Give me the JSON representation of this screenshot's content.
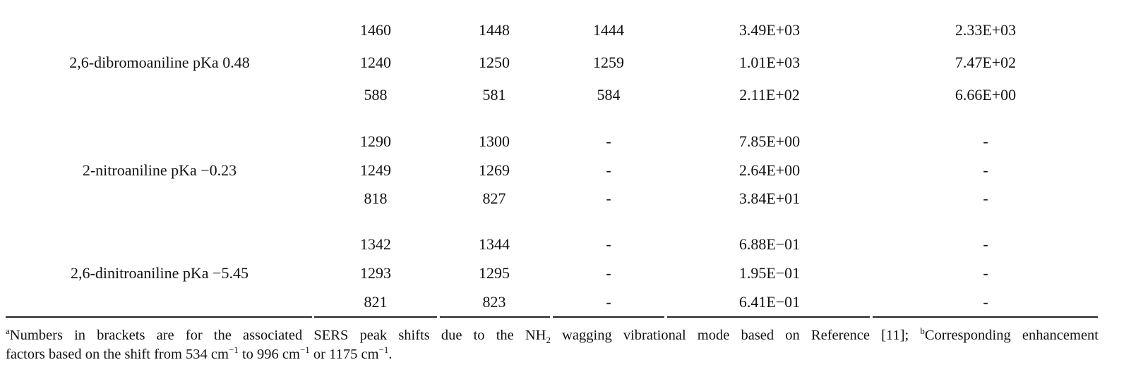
{
  "table": {
    "groups": [
      {
        "label": "2,6-dibromoaniline pKa 0.48",
        "rows": [
          [
            "1460",
            "1448",
            "1444",
            "3.49E+03",
            "2.33E+03"
          ],
          [
            "1240",
            "1250",
            "1259",
            "1.01E+03",
            "7.47E+02"
          ],
          [
            "588",
            "581",
            "584",
            "2.11E+02",
            "6.66E+00"
          ]
        ]
      },
      {
        "label": "2-nitroaniline pKa −0.23",
        "rows": [
          [
            "1290",
            "1300",
            "-",
            "7.85E+00",
            "-"
          ],
          [
            "1249",
            "1269",
            "-",
            "2.64E+00",
            "-"
          ],
          [
            "818",
            "827",
            "-",
            "3.84E+01",
            "-"
          ]
        ]
      },
      {
        "label": "2,6-dinitroaniline pKa −5.45",
        "rows": [
          [
            "1342",
            "1344",
            "-",
            "6.88E−01",
            "-"
          ],
          [
            "1293",
            "1295",
            "-",
            "1.95E−01",
            "-"
          ],
          [
            "821",
            "823",
            "-",
            "6.41E−01",
            "-"
          ]
        ]
      }
    ]
  },
  "footnote": [
    [
      {
        "sup": "a"
      },
      {
        "text": "Numbers in brackets are for the associated SERS peak shifts due to the NH"
      },
      {
        "sub": "2"
      },
      {
        "text": " wagging vibrational mode based on Reference [11]; "
      },
      {
        "sup": "b"
      },
      {
        "text": "Corresponding enhancement"
      }
    ],
    [
      {
        "text": "factors based on the shift from 534 cm"
      },
      {
        "sup": "−1"
      },
      {
        "text": " to 996 cm"
      },
      {
        "sup": "−1"
      },
      {
        "text": " or 1175 cm"
      },
      {
        "sup": "−1"
      },
      {
        "text": "."
      }
    ]
  ]
}
